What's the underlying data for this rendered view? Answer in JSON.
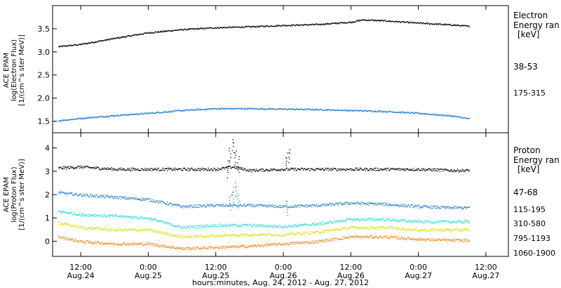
{
  "chart_data": [
    {
      "type": "scatter",
      "instrument": "ACE EPAM",
      "ylabel_quantity": "log(Electron Flux)",
      "ylabel_units": "[1/(cm^s ster MeV)]",
      "ylim": [
        1.25,
        4.0
      ],
      "yticks": [
        1.5,
        2.0,
        2.5,
        3.0,
        3.5
      ],
      "legend_title": [
        "Electron",
        "Energy ran",
        "[keV]"
      ],
      "series": [
        {
          "name": "38-53",
          "color": "#000000",
          "x": [
            "2012-08-24 08:00",
            "2012-08-24 12:00",
            "2012-08-24 18:00",
            "2012-08-25 00:00",
            "2012-08-25 06:00",
            "2012-08-25 12:00",
            "2012-08-25 18:00",
            "2012-08-26 00:00",
            "2012-08-26 06:00",
            "2012-08-26 12:00",
            "2012-08-26 14:00",
            "2012-08-26 18:00",
            "2012-08-27 00:00",
            "2012-08-27 06:00",
            "2012-08-27 09:00"
          ],
          "y": [
            3.12,
            3.17,
            3.3,
            3.42,
            3.49,
            3.53,
            3.55,
            3.58,
            3.6,
            3.65,
            3.7,
            3.68,
            3.63,
            3.59,
            3.56
          ]
        },
        {
          "name": "175-315",
          "color": "#1f77d0",
          "x": [
            "2012-08-24 08:00",
            "2012-08-24 12:00",
            "2012-08-24 18:00",
            "2012-08-25 00:00",
            "2012-08-25 06:00",
            "2012-08-25 12:00",
            "2012-08-25 18:00",
            "2012-08-26 00:00",
            "2012-08-26 06:00",
            "2012-08-26 12:00",
            "2012-08-26 18:00",
            "2012-08-27 00:00",
            "2012-08-27 06:00",
            "2012-08-27 09:00"
          ],
          "y": [
            1.52,
            1.57,
            1.63,
            1.68,
            1.74,
            1.78,
            1.78,
            1.77,
            1.76,
            1.74,
            1.72,
            1.68,
            1.62,
            1.56
          ]
        }
      ]
    },
    {
      "type": "scatter",
      "instrument": "ACE EPAM",
      "ylabel_quantity": "log(Proton Flux)",
      "ylabel_units": "[1/(cm^s ster MeV)]",
      "ylim": [
        -0.65,
        4.65
      ],
      "yticks": [
        0,
        1,
        2,
        3,
        4
      ],
      "legend_title": [
        "Proton",
        "Energy ran",
        "[keV]"
      ],
      "series": [
        {
          "name": "47-68",
          "color": "#000000",
          "x": [
            "2012-08-24 08:00",
            "2012-08-24 12:00",
            "2012-08-24 18:00",
            "2012-08-25 00:00",
            "2012-08-25 06:00",
            "2012-08-25 12:00",
            "2012-08-25 15:00",
            "2012-08-25 18:00",
            "2012-08-26 00:00",
            "2012-08-26 06:00",
            "2012-08-26 12:00",
            "2012-08-26 18:00",
            "2012-08-27 00:00",
            "2012-08-27 06:00",
            "2012-08-27 09:00"
          ],
          "y": [
            3.15,
            3.2,
            3.1,
            3.1,
            3.1,
            3.1,
            3.2,
            3.05,
            3.1,
            3.1,
            3.1,
            3.1,
            3.1,
            3.05,
            3.05
          ]
        },
        {
          "name": "115-195",
          "color": "#1f77d0",
          "x": [
            "2012-08-24 08:00",
            "2012-08-24 12:00",
            "2012-08-24 18:00",
            "2012-08-25 00:00",
            "2012-08-25 06:00",
            "2012-08-25 12:00",
            "2012-08-25 18:00",
            "2012-08-26 00:00",
            "2012-08-26 06:00",
            "2012-08-26 12:00",
            "2012-08-26 18:00",
            "2012-08-27 00:00",
            "2012-08-27 06:00",
            "2012-08-27 09:00"
          ],
          "y": [
            2.1,
            2.0,
            1.9,
            1.8,
            1.5,
            1.55,
            1.55,
            1.5,
            1.55,
            1.65,
            1.6,
            1.5,
            1.45,
            1.45
          ]
        },
        {
          "name": "310-580",
          "color": "#22ddcc",
          "x": [
            "2012-08-24 08:00",
            "2012-08-24 12:00",
            "2012-08-24 18:00",
            "2012-08-25 00:00",
            "2012-08-25 06:00",
            "2012-08-25 12:00",
            "2012-08-25 18:00",
            "2012-08-26 00:00",
            "2012-08-26 06:00",
            "2012-08-26 12:00",
            "2012-08-26 18:00",
            "2012-08-27 00:00",
            "2012-08-27 06:00",
            "2012-08-27 09:00"
          ],
          "y": [
            1.3,
            1.15,
            1.1,
            1.0,
            0.6,
            0.7,
            0.7,
            0.65,
            0.75,
            0.95,
            0.95,
            0.85,
            0.85,
            0.85
          ]
        },
        {
          "name": "795-1193",
          "color": "#d4e000",
          "x": [
            "2012-08-24 08:00",
            "2012-08-24 12:00",
            "2012-08-24 18:00",
            "2012-08-25 00:00",
            "2012-08-25 06:00",
            "2012-08-25 12:00",
            "2012-08-25 18:00",
            "2012-08-26 00:00",
            "2012-08-26 06:00",
            "2012-08-26 12:00",
            "2012-08-26 18:00",
            "2012-08-27 00:00",
            "2012-08-27 06:00",
            "2012-08-27 09:00"
          ],
          "y": [
            0.8,
            0.6,
            0.5,
            0.5,
            0.2,
            0.25,
            0.3,
            0.3,
            0.4,
            0.6,
            0.6,
            0.5,
            0.5,
            0.5
          ]
        },
        {
          "name": "1060-1900",
          "color": "#f08010",
          "x": [
            "2012-08-24 08:00",
            "2012-08-24 12:00",
            "2012-08-24 18:00",
            "2012-08-25 00:00",
            "2012-08-25 06:00",
            "2012-08-25 12:00",
            "2012-08-25 18:00",
            "2012-08-26 00:00",
            "2012-08-26 06:00",
            "2012-08-26 12:00",
            "2012-08-26 18:00",
            "2012-08-27 00:00",
            "2012-08-27 06:00",
            "2012-08-27 09:00"
          ],
          "y": [
            0.2,
            0.0,
            -0.1,
            -0.1,
            -0.3,
            -0.25,
            -0.2,
            -0.1,
            0.0,
            0.2,
            0.2,
            0.1,
            0.05,
            0.05
          ]
        }
      ]
    }
  ],
  "x_axis": {
    "range": [
      "2012-08-24 07:00",
      "2012-08-27 16:00"
    ],
    "ticks": [
      {
        "time": "2012-08-24 12:00",
        "label": "12:00",
        "date": "Aug.24"
      },
      {
        "time": "2012-08-25 00:00",
        "label": "0:00",
        "date": "Aug.25"
      },
      {
        "time": "2012-08-25 12:00",
        "label": "12:00",
        "date": "Aug.25"
      },
      {
        "time": "2012-08-26 00:00",
        "label": "0:00",
        "date": "Aug.26"
      },
      {
        "time": "2012-08-26 12:00",
        "label": "12:00",
        "date": "Aug.26"
      },
      {
        "time": "2012-08-27 00:00",
        "label": "0:00",
        "date": "Aug.27"
      },
      {
        "time": "2012-08-27 12:00",
        "label": "12:00",
        "date": "Aug.27"
      }
    ],
    "title": "hours:minutes, Aug. 24, 2012 - Aug. 27, 2012"
  },
  "spikes": [
    {
      "name": "proton-47-68-burst",
      "color": "#000000",
      "x": [
        "2012-08-25 14:00",
        "2012-08-25 14:30",
        "2012-08-25 15:00",
        "2012-08-25 15:30",
        "2012-08-25 16:00",
        "2012-08-26 00:30",
        "2012-08-26 01:00"
      ],
      "y": [
        3.4,
        4.0,
        4.4,
        3.9,
        3.6,
        3.8,
        4.0
      ]
    },
    {
      "name": "proton-115-195-burst",
      "color": "#1f77d0",
      "x": [
        "2012-08-25 14:30",
        "2012-08-25 15:00",
        "2012-08-25 15:30",
        "2012-08-25 16:00",
        "2012-08-26 00:30"
      ],
      "y": [
        2.0,
        2.3,
        2.5,
        2.1,
        1.8
      ]
    }
  ]
}
